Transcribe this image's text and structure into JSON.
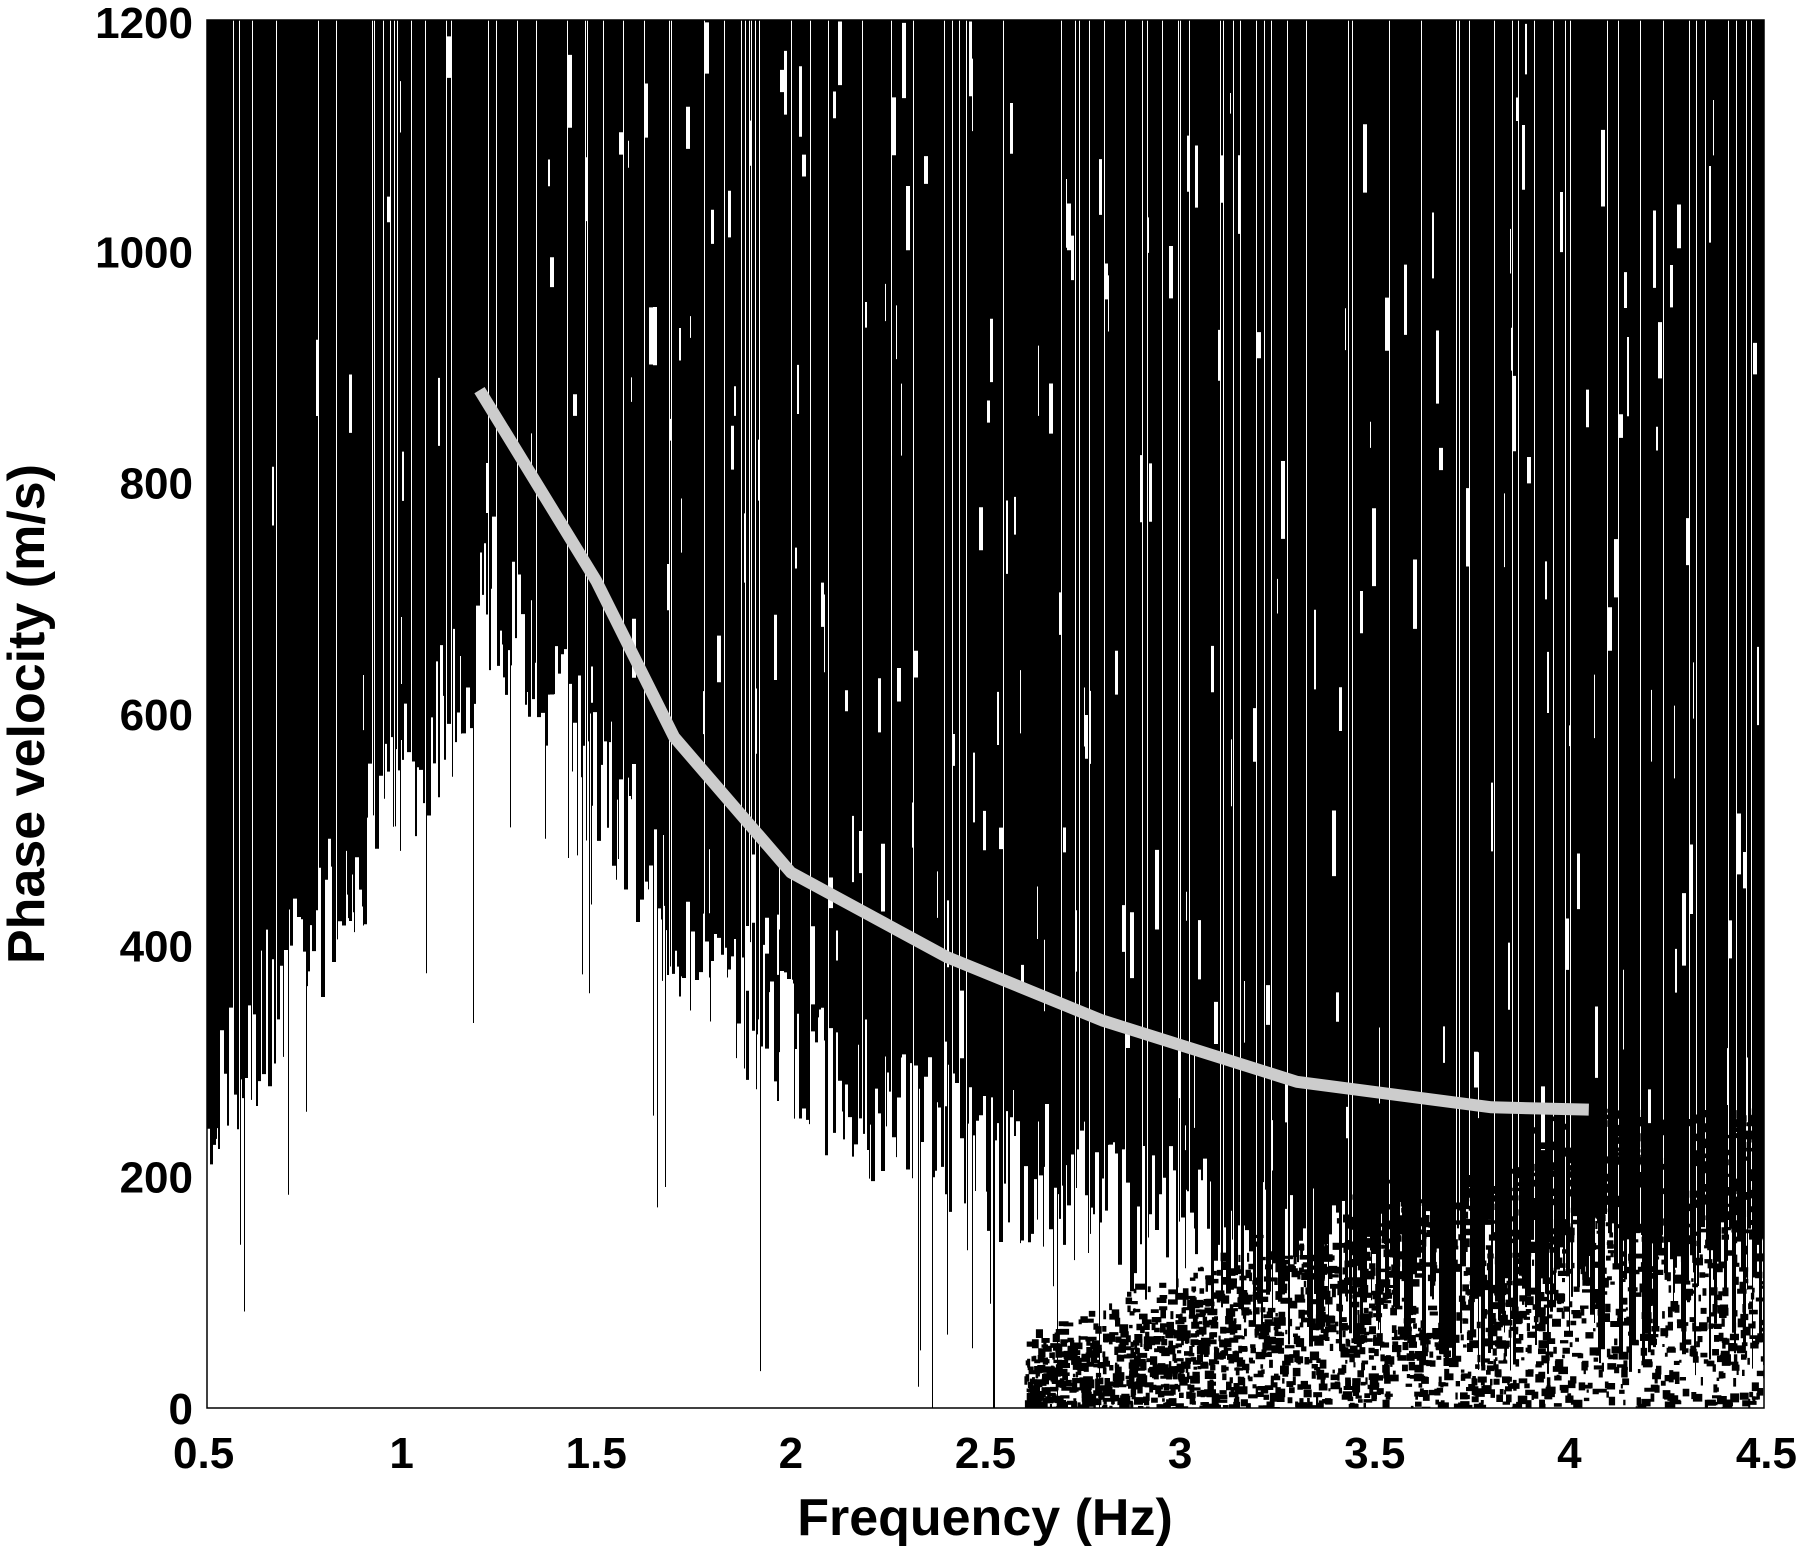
{
  "chart_data": {
    "type": "heatmap",
    "title": "",
    "xlabel": "Frequency (Hz)",
    "ylabel": "Phase velocity (m/s)",
    "xlim": [
      0.5,
      4.5
    ],
    "ylim": [
      0,
      1200
    ],
    "x_ticks": [
      "0.5",
      "1",
      "1.5",
      "2",
      "2.5",
      "3",
      "3.5",
      "4",
      "4.5"
    ],
    "y_ticks": [
      "0",
      "200",
      "400",
      "600",
      "800",
      "1000",
      "1200"
    ],
    "colormap": [
      "#000000",
      "#ffffff"
    ],
    "grid": false,
    "series": [
      {
        "type": "line",
        "color": "#cccccc",
        "x": [
          1.2,
          1.5,
          1.7,
          2.0,
          2.4,
          2.8,
          3.3,
          3.8,
          4.05
        ],
        "y": [
          880,
          715,
          580,
          463,
          390,
          335,
          282,
          260,
          258
        ]
      }
    ]
  }
}
